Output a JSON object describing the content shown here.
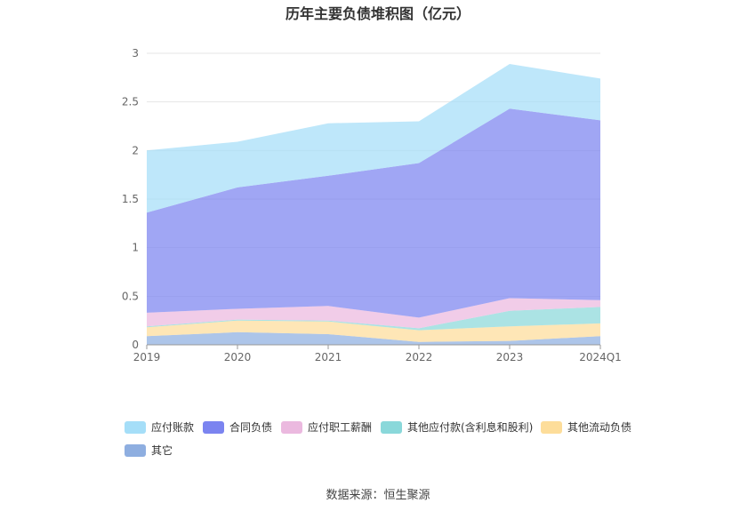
{
  "chart_data": {
    "type": "area",
    "stacked": true,
    "title": "历年主要负债堆积图（亿元）",
    "categories": [
      "2019",
      "2020",
      "2021",
      "2022",
      "2023",
      "2024Q1"
    ],
    "ylim": [
      0,
      3
    ],
    "yticks": [
      "0",
      "0.5",
      "1",
      "1.5",
      "2",
      "2.5",
      "3"
    ],
    "grid": true,
    "legend_position": "bottom",
    "series": [
      {
        "name": "其它",
        "color": "#8eaee0",
        "values": [
          0.09,
          0.13,
          0.11,
          0.03,
          0.04,
          0.09
        ]
      },
      {
        "name": "其他流动负债",
        "color": "#fddd9a",
        "values": [
          0.09,
          0.12,
          0.13,
          0.12,
          0.15,
          0.13
        ]
      },
      {
        "name": "其他应付款(含利息和股利)",
        "color": "#8ad8da",
        "values": [
          0.01,
          0.01,
          0.01,
          0.02,
          0.16,
          0.17
        ]
      },
      {
        "name": "应付职工薪酬",
        "color": "#ebb9df",
        "values": [
          0.14,
          0.11,
          0.15,
          0.11,
          0.13,
          0.07
        ]
      },
      {
        "name": "合同负债",
        "color": "#7b84f0",
        "values": [
          1.03,
          1.25,
          1.34,
          1.59,
          1.95,
          1.85
        ]
      },
      {
        "name": "应付账款",
        "color": "#a5def8",
        "values": [
          0.64,
          0.47,
          0.54,
          0.43,
          0.46,
          0.43
        ]
      }
    ]
  },
  "source": "数据来源：恒生聚源"
}
